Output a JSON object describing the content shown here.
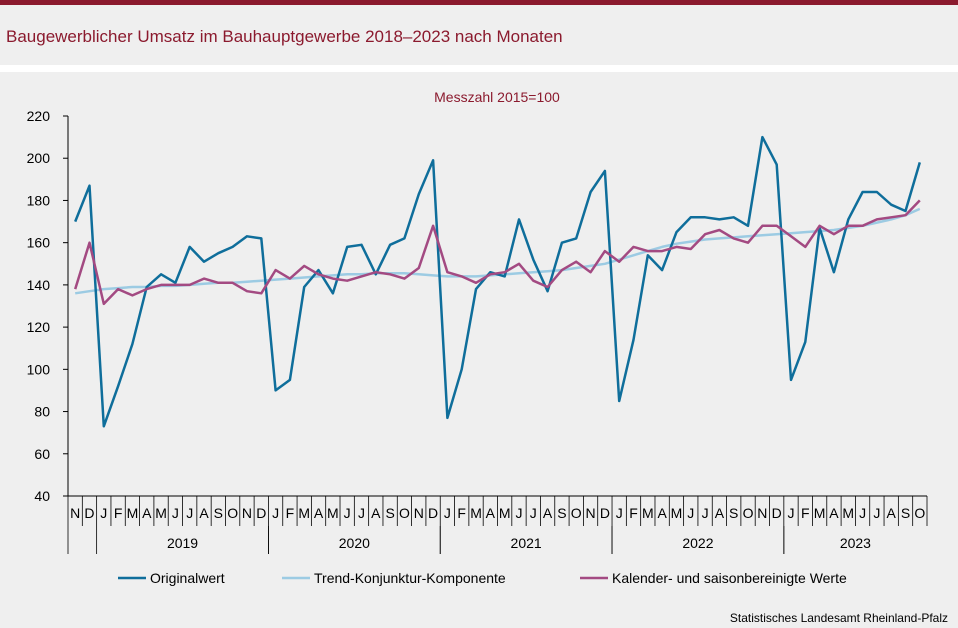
{
  "header": {
    "title": "Baugewerblicher Umsatz im Bauhauptgewerbe 2018–2023 nach Monaten"
  },
  "footer": {
    "source": "Statistisches Landesamt Rheinland-Pfalz"
  },
  "colors": {
    "accent": "#8b1a2e",
    "original": "#0f6e9b",
    "trend": "#9ccbe3",
    "seasonal": "#a34a82"
  },
  "chart_data": {
    "type": "line",
    "subtitle": "Messzahl 2015=100",
    "ylim": [
      40,
      220
    ],
    "yticks": [
      40,
      60,
      80,
      100,
      120,
      140,
      160,
      180,
      200,
      220
    ],
    "grid": false,
    "legend_position": "bottom",
    "month_labels": [
      "N",
      "D",
      "J",
      "F",
      "M",
      "A",
      "M",
      "J",
      "J",
      "A",
      "S",
      "O",
      "N",
      "D",
      "J",
      "F",
      "M",
      "A",
      "M",
      "J",
      "J",
      "A",
      "S",
      "O",
      "N",
      "D",
      "J",
      "F",
      "M",
      "A",
      "M",
      "J",
      "J",
      "A",
      "S",
      "O",
      "N",
      "D",
      "J",
      "F",
      "M",
      "A",
      "M",
      "J",
      "J",
      "A",
      "S",
      "O",
      "N",
      "D",
      "J",
      "F",
      "M",
      "A",
      "M",
      "J",
      "J",
      "A",
      "S",
      "O"
    ],
    "year_groups": [
      {
        "label": "2019",
        "start": 2,
        "end": 13
      },
      {
        "label": "2020",
        "start": 14,
        "end": 25
      },
      {
        "label": "2021",
        "start": 26,
        "end": 37
      },
      {
        "label": "2022",
        "start": 38,
        "end": 49
      },
      {
        "label": "2023",
        "start": 50,
        "end": 59
      }
    ],
    "series": [
      {
        "name": "Originalwert",
        "values": [
          170,
          187,
          73,
          92,
          112,
          139,
          145,
          141,
          158,
          151,
          155,
          158,
          163,
          162,
          90,
          95,
          139,
          147,
          136,
          158,
          159,
          145,
          159,
          162,
          183,
          199,
          77,
          100,
          138,
          146,
          144,
          171,
          152,
          137,
          160,
          162,
          184,
          194,
          85,
          114,
          154,
          147,
          165,
          172,
          172,
          171,
          172,
          168,
          210,
          197,
          95,
          113,
          167,
          146,
          171,
          184,
          184,
          178,
          175,
          198
        ]
      },
      {
        "name": "Trend-Konjunktur-Komponente",
        "values": [
          136,
          137,
          138,
          138.5,
          139,
          139,
          139.5,
          139.5,
          140,
          140.5,
          141,
          141,
          141.5,
          142,
          142.5,
          143,
          143.5,
          144,
          144.5,
          145,
          145,
          145.5,
          145.5,
          145.5,
          145,
          144.5,
          144,
          144,
          144,
          144.5,
          145,
          145.5,
          146,
          146.5,
          147,
          148,
          149,
          150,
          152,
          154,
          156,
          158,
          159.5,
          160.5,
          161.5,
          162,
          162.5,
          163,
          163.5,
          164,
          164.5,
          165,
          165.5,
          166,
          167,
          168,
          169.5,
          171,
          173,
          176
        ]
      },
      {
        "name": "Kalender- und saisonbereinigte Werte",
        "values": [
          138,
          160,
          131,
          138,
          135,
          138,
          140,
          140,
          140,
          143,
          141,
          141,
          137,
          136,
          147,
          143,
          149,
          145,
          143,
          142,
          144,
          146,
          145,
          143,
          148,
          168,
          146,
          144,
          141,
          145,
          146,
          150,
          142,
          139,
          147,
          151,
          146,
          156,
          151,
          158,
          156,
          156,
          158,
          157,
          164,
          166,
          162,
          160,
          168,
          168,
          163,
          158,
          168,
          164,
          168,
          168,
          171,
          172,
          173,
          180
        ]
      }
    ]
  }
}
